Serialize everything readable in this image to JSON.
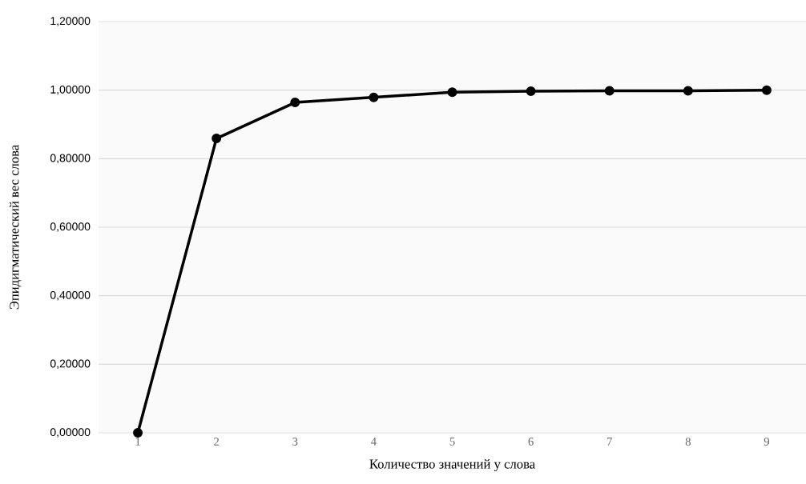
{
  "chart_data": {
    "type": "line",
    "xlabel": "Количество значений у слова",
    "ylabel": "Эпидигматический вес слова",
    "categories": [
      "1",
      "2",
      "3",
      "4",
      "5",
      "6",
      "7",
      "8",
      "9"
    ],
    "values": [
      0,
      0.859,
      0.964,
      0.979,
      0.994,
      0.997,
      0.998,
      0.998,
      1.0
    ],
    "color": "#000000",
    "ylim": [
      0,
      1.2
    ],
    "yticks": [
      {
        "value": 0,
        "label": "0,00000"
      },
      {
        "value": 0.2,
        "label": "0,20000"
      },
      {
        "value": 0.4,
        "label": "0,40000"
      },
      {
        "value": 0.6,
        "label": "0,60000"
      },
      {
        "value": 0.8,
        "label": "0,80000"
      },
      {
        "value": 1.0,
        "label": "1,00000"
      },
      {
        "value": 1.2,
        "label": "1,20000"
      }
    ],
    "grid": "y",
    "marker": "circle"
  }
}
